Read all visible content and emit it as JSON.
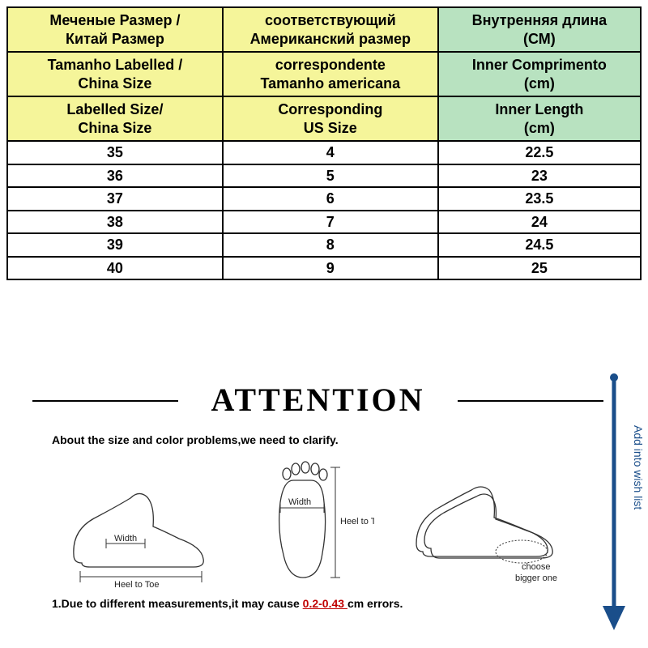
{
  "table": {
    "header_colors": {
      "col12": "#f5f59a",
      "col3": "#b8e2c0"
    },
    "header_rows": [
      {
        "c1a": "Меченые Размер /",
        "c1b": "Китай Размер",
        "c2a": "соответствующий",
        "c2b": "Американский размер",
        "c3a": "Внутренняя длина",
        "c3b": "(СМ)"
      },
      {
        "c1a": "Tamanho Labelled /",
        "c1b": "China Size",
        "c2a": "correspondente",
        "c2b": "Tamanho americana",
        "c3a": "Inner Comprimento",
        "c3b": "(cm)"
      },
      {
        "c1a": "Labelled Size/",
        "c1b": "China Size",
        "c2a": "Corresponding",
        "c2b": "US Size",
        "c3a": "Inner Length",
        "c3b": "(cm)"
      }
    ],
    "data_rows": [
      {
        "china": "35",
        "us": "4",
        "len": "22.5"
      },
      {
        "china": "36",
        "us": "5",
        "len": "23"
      },
      {
        "china": "37",
        "us": "6",
        "len": "23.5"
      },
      {
        "china": "38",
        "us": "7",
        "len": "24"
      },
      {
        "china": "39",
        "us": "8",
        "len": "24.5"
      },
      {
        "china": "40",
        "us": "9",
        "len": "25"
      }
    ],
    "col_widths_pct": [
      34,
      34,
      32
    ],
    "border_color": "#000000",
    "font_size": 18
  },
  "attention": {
    "title": "ATTENTION",
    "subtitle": "About the size and color problems,we need to clarify.",
    "labels": {
      "width": "Width",
      "heel_to_toe": "Heel to Toe",
      "choose_bigger": "choose",
      "choose_bigger2": "bigger one"
    },
    "note_prefix": "1.Due to different measurements,it may cause ",
    "note_err": "0.2-0.43 ",
    "note_suffix": "cm errors.",
    "title_fontsize": 40,
    "sub_fontsize": 14,
    "error_color": "#c00000"
  },
  "wishlist": {
    "text": "Add into wish list",
    "arrow_color": "#1a4e8a"
  }
}
